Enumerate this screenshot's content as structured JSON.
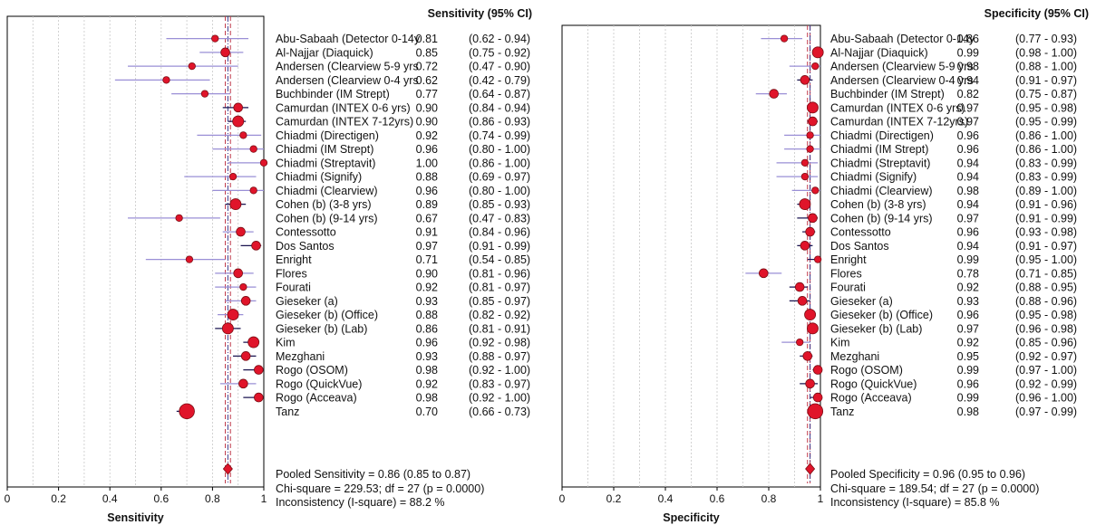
{
  "colors": {
    "marker": "#e0142a",
    "marker_edge": "#7a0d14",
    "ci_light": "#9a8fd6",
    "ci_dark": "#1a1450",
    "pooled_line": "#c0394a",
    "ref_line": "#3a3a8c",
    "grid": "#c8c8c8"
  },
  "chart_data": [
    {
      "type": "forest",
      "panel": "sensitivity",
      "header": "Sensitivity (95% CI)",
      "xlabel": "Sensitivity",
      "xlim": [
        0,
        1
      ],
      "xticks": [
        "0",
        "0.2",
        "0.4",
        "0.6",
        "0.8",
        "1"
      ],
      "grid": true,
      "studies": [
        {
          "label": "Abu-Sabaah (Detector 0-14y",
          "est": 0.81,
          "lo": 0.62,
          "hi": 0.94,
          "est_text": "0.81",
          "ci_text": "(0.62 - 0.94)",
          "w": 1
        },
        {
          "label": "Al-Najjar (Diaquick)",
          "est": 0.85,
          "lo": 0.75,
          "hi": 0.92,
          "est_text": "0.85",
          "ci_text": "(0.75 - 0.92)",
          "w": 2
        },
        {
          "label": "Andersen (Clearview 5-9 yrs",
          "est": 0.72,
          "lo": 0.47,
          "hi": 0.9,
          "est_text": "0.72",
          "ci_text": "(0.47 - 0.90)",
          "w": 1
        },
        {
          "label": "Andersen (Clearview 0-4 yrs",
          "est": 0.62,
          "lo": 0.42,
          "hi": 0.79,
          "est_text": "0.62",
          "ci_text": "(0.42 - 0.79)",
          "w": 1
        },
        {
          "label": "Buchbinder (IM Strept)",
          "est": 0.77,
          "lo": 0.64,
          "hi": 0.87,
          "est_text": "0.77",
          "ci_text": "(0.64 - 0.87)",
          "w": 1
        },
        {
          "label": "Camurdan (INTEX 0-6 yrs)",
          "est": 0.9,
          "lo": 0.84,
          "hi": 0.94,
          "est_text": "0.90",
          "ci_text": "(0.84 - 0.94)",
          "w": 2
        },
        {
          "label": "Camurdan (INTEX 7-12yrs)",
          "est": 0.9,
          "lo": 0.86,
          "hi": 0.93,
          "est_text": "0.90",
          "ci_text": "(0.86 - 0.93)",
          "w": 3
        },
        {
          "label": "Chiadmi (Directigen)",
          "est": 0.92,
          "lo": 0.74,
          "hi": 0.99,
          "est_text": "0.92",
          "ci_text": "(0.74 - 0.99)",
          "w": 1
        },
        {
          "label": "Chiadmi (IM Strept)",
          "est": 0.96,
          "lo": 0.8,
          "hi": 1.0,
          "est_text": "0.96",
          "ci_text": "(0.80 - 1.00)",
          "w": 1
        },
        {
          "label": "Chiadmi (Streptavit)",
          "est": 1.0,
          "lo": 0.86,
          "hi": 1.0,
          "est_text": "1.00",
          "ci_text": "(0.86 - 1.00)",
          "w": 1
        },
        {
          "label": "Chiadmi (Signify)",
          "est": 0.88,
          "lo": 0.69,
          "hi": 0.97,
          "est_text": "0.88",
          "ci_text": "(0.69 - 0.97)",
          "w": 1
        },
        {
          "label": "Chiadmi (Clearview)",
          "est": 0.96,
          "lo": 0.8,
          "hi": 1.0,
          "est_text": "0.96",
          "ci_text": "(0.80 - 1.00)",
          "w": 1
        },
        {
          "label": "Cohen (b) (3-8 yrs)",
          "est": 0.89,
          "lo": 0.85,
          "hi": 0.93,
          "est_text": "0.89",
          "ci_text": "(0.85 - 0.93)",
          "w": 3
        },
        {
          "label": "Cohen (b) (9-14 yrs)",
          "est": 0.67,
          "lo": 0.47,
          "hi": 0.83,
          "est_text": "0.67",
          "ci_text": "(0.47 - 0.83)",
          "w": 1
        },
        {
          "label": "Contessotto",
          "est": 0.91,
          "lo": 0.84,
          "hi": 0.96,
          "est_text": "0.91",
          "ci_text": "(0.84 - 0.96)",
          "w": 2
        },
        {
          "label": "Dos Santos",
          "est": 0.97,
          "lo": 0.91,
          "hi": 0.99,
          "est_text": "0.97",
          "ci_text": "(0.91 - 0.99)",
          "w": 2
        },
        {
          "label": "Enright",
          "est": 0.71,
          "lo": 0.54,
          "hi": 0.85,
          "est_text": "0.71",
          "ci_text": "(0.54 - 0.85)",
          "w": 1
        },
        {
          "label": "Flores",
          "est": 0.9,
          "lo": 0.81,
          "hi": 0.96,
          "est_text": "0.90",
          "ci_text": "(0.81 - 0.96)",
          "w": 2
        },
        {
          "label": "Fourati",
          "est": 0.92,
          "lo": 0.81,
          "hi": 0.97,
          "est_text": "0.92",
          "ci_text": "(0.81 - 0.97)",
          "w": 1
        },
        {
          "label": "Gieseker (a)",
          "est": 0.93,
          "lo": 0.85,
          "hi": 0.97,
          "est_text": "0.93",
          "ci_text": "(0.85 - 0.97)",
          "w": 2
        },
        {
          "label": "Gieseker (b) (Office)",
          "est": 0.88,
          "lo": 0.82,
          "hi": 0.92,
          "est_text": "0.88",
          "ci_text": "(0.82 - 0.92)",
          "w": 3
        },
        {
          "label": "Gieseker (b) (Lab)",
          "est": 0.86,
          "lo": 0.81,
          "hi": 0.91,
          "est_text": "0.86",
          "ci_text": "(0.81 - 0.91)",
          "w": 3
        },
        {
          "label": "Kim",
          "est": 0.96,
          "lo": 0.92,
          "hi": 0.98,
          "est_text": "0.96",
          "ci_text": "(0.92 - 0.98)",
          "w": 3
        },
        {
          "label": "Mezghani",
          "est": 0.93,
          "lo": 0.88,
          "hi": 0.97,
          "est_text": "0.93",
          "ci_text": "(0.88 - 0.97)",
          "w": 2
        },
        {
          "label": "Rogo (OSOM)",
          "est": 0.98,
          "lo": 0.92,
          "hi": 1.0,
          "est_text": "0.98",
          "ci_text": "(0.92 - 1.00)",
          "w": 2
        },
        {
          "label": "Rogo (QuickVue)",
          "est": 0.92,
          "lo": 0.83,
          "hi": 0.97,
          "est_text": "0.92",
          "ci_text": "(0.83 - 0.97)",
          "w": 2
        },
        {
          "label": "Rogo (Acceava)",
          "est": 0.98,
          "lo": 0.92,
          "hi": 1.0,
          "est_text": "0.98",
          "ci_text": "(0.92 - 1.00)",
          "w": 2
        },
        {
          "label": "Tanz",
          "est": 0.7,
          "lo": 0.66,
          "hi": 0.73,
          "est_text": "0.70",
          "ci_text": "(0.66 - 0.73)",
          "w": 5
        }
      ],
      "pooled": {
        "est": 0.86,
        "lo": 0.85,
        "hi": 0.87
      },
      "summary": [
        "Pooled Sensitivity = 0.86 (0.85 to 0.87)",
        "Chi-square = 229.53; df =  27 (p = 0.0000)",
        "Inconsistency (I-square) = 88.2 %"
      ]
    },
    {
      "type": "forest",
      "panel": "specificity",
      "header": "Specificity (95% CI)",
      "xlabel": "Specificity",
      "xlim": [
        0,
        1
      ],
      "xticks": [
        "0",
        "0.2",
        "0.4",
        "0.6",
        "0.8",
        "1"
      ],
      "grid": true,
      "studies": [
        {
          "label": "Abu-Sabaah (Detector 0-14y",
          "est": 0.86,
          "lo": 0.77,
          "hi": 0.93,
          "est_text": "0.86",
          "ci_text": "(0.77 - 0.93)",
          "w": 1
        },
        {
          "label": "Al-Najjar (Diaquick)",
          "est": 0.99,
          "lo": 0.98,
          "hi": 1.0,
          "est_text": "0.99",
          "ci_text": "(0.98 - 1.00)",
          "w": 3
        },
        {
          "label": "Andersen (Clearview 5-9 yrs",
          "est": 0.98,
          "lo": 0.88,
          "hi": 1.0,
          "est_text": "0.98",
          "ci_text": "(0.88 - 1.00)",
          "w": 1
        },
        {
          "label": "Andersen (Clearview 0-4 yrs",
          "est": 0.94,
          "lo": 0.91,
          "hi": 0.97,
          "est_text": "0.94",
          "ci_text": "(0.91 - 0.97)",
          "w": 2
        },
        {
          "label": "Buchbinder (IM Strept)",
          "est": 0.82,
          "lo": 0.75,
          "hi": 0.87,
          "est_text": "0.82",
          "ci_text": "(0.75 - 0.87)",
          "w": 2
        },
        {
          "label": "Camurdan (INTEX 0-6 yrs)",
          "est": 0.97,
          "lo": 0.95,
          "hi": 0.98,
          "est_text": "0.97",
          "ci_text": "(0.95 - 0.98)",
          "w": 3
        },
        {
          "label": "Camurdan (INTEX 7-12yrs)",
          "est": 0.97,
          "lo": 0.95,
          "hi": 0.99,
          "est_text": "0.97",
          "ci_text": "(0.95 - 0.99)",
          "w": 2
        },
        {
          "label": "Chiadmi (Directigen)",
          "est": 0.96,
          "lo": 0.86,
          "hi": 1.0,
          "est_text": "0.96",
          "ci_text": "(0.86 - 1.00)",
          "w": 1
        },
        {
          "label": "Chiadmi (IM Strept)",
          "est": 0.96,
          "lo": 0.86,
          "hi": 1.0,
          "est_text": "0.96",
          "ci_text": "(0.86 - 1.00)",
          "w": 1
        },
        {
          "label": "Chiadmi (Streptavit)",
          "est": 0.94,
          "lo": 0.83,
          "hi": 0.99,
          "est_text": "0.94",
          "ci_text": "(0.83 - 0.99)",
          "w": 1
        },
        {
          "label": "Chiadmi (Signify)",
          "est": 0.94,
          "lo": 0.83,
          "hi": 0.99,
          "est_text": "0.94",
          "ci_text": "(0.83 - 0.99)",
          "w": 1
        },
        {
          "label": "Chiadmi (Clearview)",
          "est": 0.98,
          "lo": 0.89,
          "hi": 1.0,
          "est_text": "0.98",
          "ci_text": "(0.89 - 1.00)",
          "w": 1
        },
        {
          "label": "Cohen (b) (3-8 yrs)",
          "est": 0.94,
          "lo": 0.91,
          "hi": 0.96,
          "est_text": "0.94",
          "ci_text": "(0.91 - 0.96)",
          "w": 3
        },
        {
          "label": "Cohen (b) (9-14 yrs)",
          "est": 0.97,
          "lo": 0.91,
          "hi": 0.99,
          "est_text": "0.97",
          "ci_text": "(0.91 - 0.99)",
          "w": 2
        },
        {
          "label": "Contessotto",
          "est": 0.96,
          "lo": 0.93,
          "hi": 0.98,
          "est_text": "0.96",
          "ci_text": "(0.93 - 0.98)",
          "w": 2
        },
        {
          "label": "Dos Santos",
          "est": 0.94,
          "lo": 0.91,
          "hi": 0.97,
          "est_text": "0.94",
          "ci_text": "(0.91 - 0.97)",
          "w": 2
        },
        {
          "label": "Enright",
          "est": 0.99,
          "lo": 0.95,
          "hi": 1.0,
          "est_text": "0.99",
          "ci_text": "(0.95 - 1.00)",
          "w": 1
        },
        {
          "label": "Flores",
          "est": 0.78,
          "lo": 0.71,
          "hi": 0.85,
          "est_text": "0.78",
          "ci_text": "(0.71 - 0.85)",
          "w": 2
        },
        {
          "label": "Fourati",
          "est": 0.92,
          "lo": 0.88,
          "hi": 0.95,
          "est_text": "0.92",
          "ci_text": "(0.88 - 0.95)",
          "w": 2
        },
        {
          "label": "Gieseker (a)",
          "est": 0.93,
          "lo": 0.88,
          "hi": 0.96,
          "est_text": "0.93",
          "ci_text": "(0.88 - 0.96)",
          "w": 2
        },
        {
          "label": "Gieseker (b) (Office)",
          "est": 0.96,
          "lo": 0.95,
          "hi": 0.98,
          "est_text": "0.96",
          "ci_text": "(0.95 - 0.98)",
          "w": 3
        },
        {
          "label": "Gieseker (b) (Lab)",
          "est": 0.97,
          "lo": 0.96,
          "hi": 0.98,
          "est_text": "0.97",
          "ci_text": "(0.96 - 0.98)",
          "w": 3
        },
        {
          "label": "Kim",
          "est": 0.92,
          "lo": 0.85,
          "hi": 0.96,
          "est_text": "0.92",
          "ci_text": "(0.85 - 0.96)",
          "w": 1
        },
        {
          "label": "Mezghani",
          "est": 0.95,
          "lo": 0.92,
          "hi": 0.97,
          "est_text": "0.95",
          "ci_text": "(0.92 - 0.97)",
          "w": 2
        },
        {
          "label": "Rogo (OSOM)",
          "est": 0.99,
          "lo": 0.97,
          "hi": 1.0,
          "est_text": "0.99",
          "ci_text": "(0.97 - 1.00)",
          "w": 2
        },
        {
          "label": "Rogo (QuickVue)",
          "est": 0.96,
          "lo": 0.92,
          "hi": 0.99,
          "est_text": "0.96",
          "ci_text": "(0.92 - 0.99)",
          "w": 2
        },
        {
          "label": "Rogo (Acceava)",
          "est": 0.99,
          "lo": 0.96,
          "hi": 1.0,
          "est_text": "0.99",
          "ci_text": "(0.96 - 1.00)",
          "w": 2
        },
        {
          "label": "Tanz",
          "est": 0.98,
          "lo": 0.97,
          "hi": 0.99,
          "est_text": "0.98",
          "ci_text": "(0.97 - 0.99)",
          "w": 5
        }
      ],
      "pooled": {
        "est": 0.96,
        "lo": 0.95,
        "hi": 0.96
      },
      "summary": [
        "Pooled Specificity = 0.96 (0.95 to 0.96)",
        "Chi-square = 189.54; df =  27 (p = 0.0000)",
        "Inconsistency (I-square) = 85.8 %"
      ]
    }
  ]
}
